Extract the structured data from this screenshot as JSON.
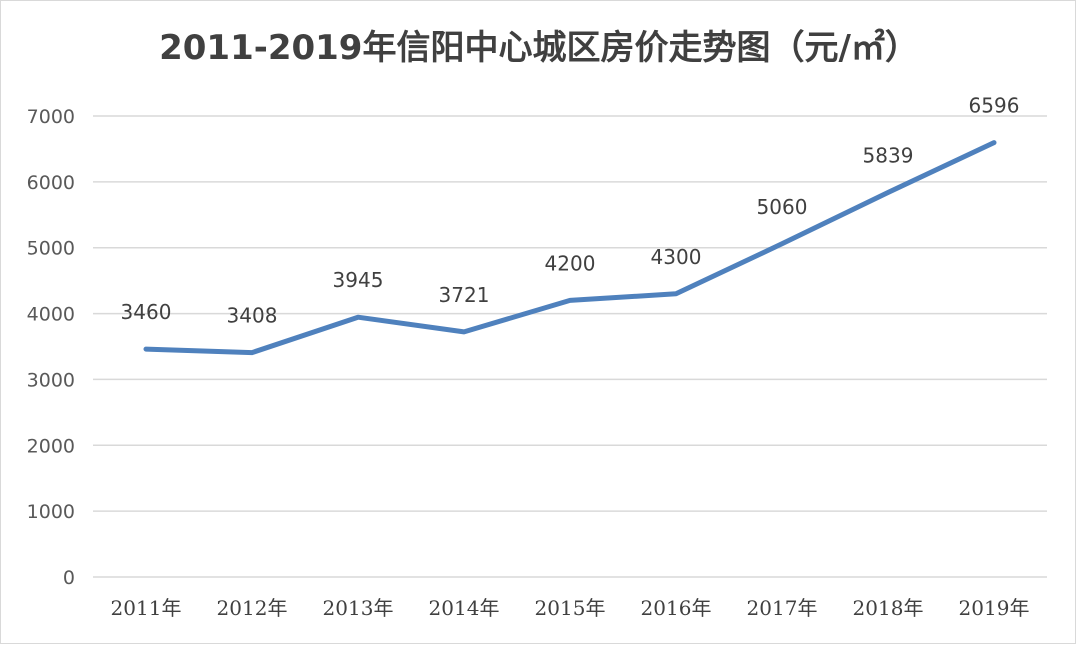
{
  "chart_data": {
    "type": "line",
    "title": "2011-2019年信阳中心城区房价走势图（元/㎡）",
    "xlabel": "",
    "ylabel": "",
    "categories": [
      "2011年",
      "2012年",
      "2013年",
      "2014年",
      "2015年",
      "2016年",
      "2017年",
      "2018年",
      "2019年"
    ],
    "series": [
      {
        "values": [
          3460,
          3408,
          3945,
          3721,
          4200,
          4300,
          5060,
          5839,
          6596
        ],
        "color": "#4f81bd"
      }
    ],
    "data_labels": [
      "3460",
      "3408",
      "3945",
      "3721",
      "4200",
      "4300",
      "5060",
      "5839",
      "6596"
    ],
    "ylim": [
      0,
      7000
    ],
    "yticks": [
      0,
      1000,
      2000,
      3000,
      4000,
      5000,
      6000,
      7000
    ],
    "ytick_labels": [
      "0",
      "1000",
      "2000",
      "3000",
      "4000",
      "5000",
      "6000",
      "7000"
    ],
    "grid": true,
    "legend": "none"
  }
}
